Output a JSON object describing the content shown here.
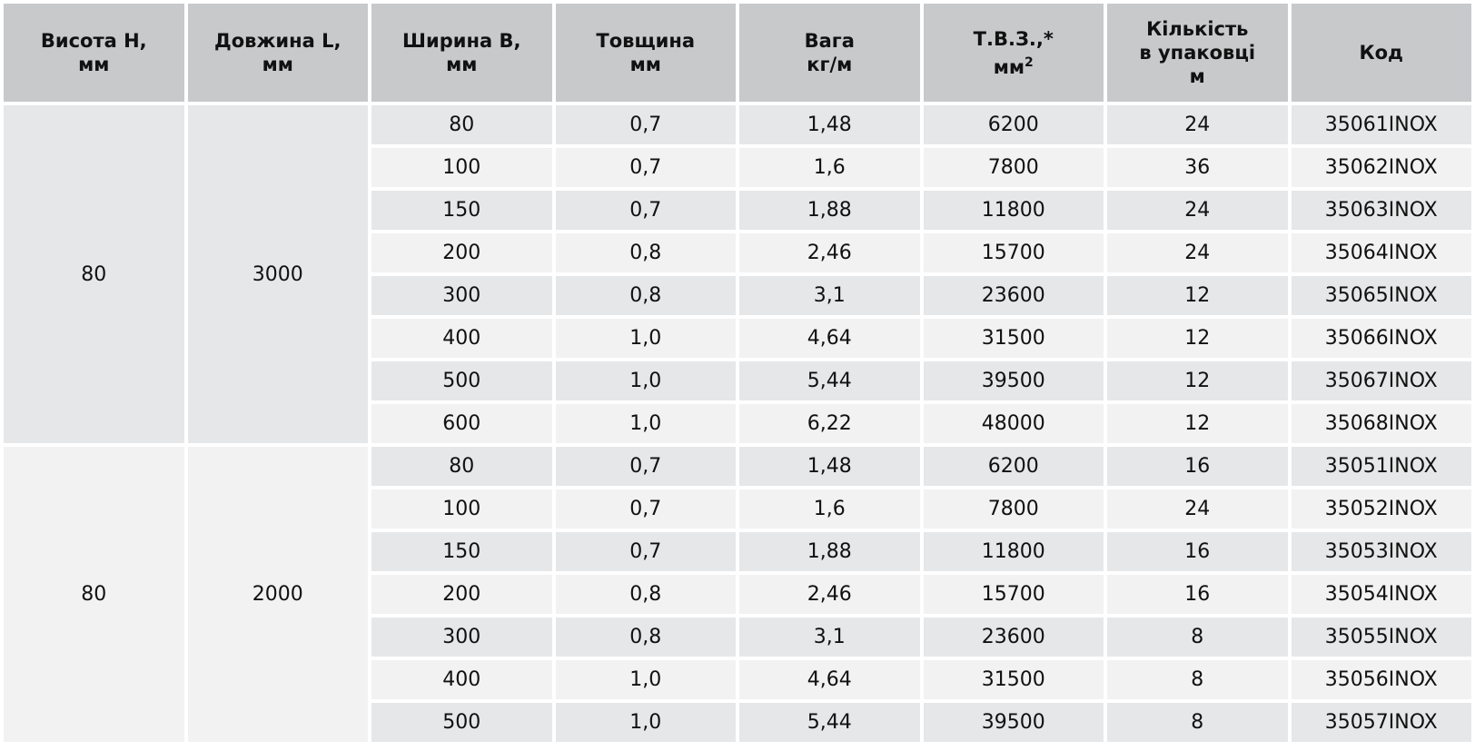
{
  "headers": [
    {
      "line1": "Висота H,",
      "line2": "мм"
    },
    {
      "line1": "Довжина L,",
      "line2": "мм"
    },
    {
      "line1": "Ширина B,",
      "line2": "мм"
    },
    {
      "line1": "Товщина",
      "line2": "мм"
    },
    {
      "line1": "Вага",
      "line2": "кг/м"
    },
    {
      "line1": "Т.В.З.,*",
      "line2": "мм",
      "sup": "2"
    },
    {
      "line1": "Кількість",
      "line2": "в упаковці",
      "line3": "м"
    },
    {
      "line1": "Код"
    }
  ],
  "groups": [
    {
      "height": "80",
      "length": "3000",
      "rows": [
        [
          "80",
          "0,7",
          "1,48",
          "6200",
          "24",
          "35061INOX"
        ],
        [
          "100",
          "0,7",
          "1,6",
          "7800",
          "36",
          "35062INOX"
        ],
        [
          "150",
          "0,7",
          "1,88",
          "11800",
          "24",
          "35063INOX"
        ],
        [
          "200",
          "0,8",
          "2,46",
          "15700",
          "24",
          "35064INOX"
        ],
        [
          "300",
          "0,8",
          "3,1",
          "23600",
          "12",
          "35065INOX"
        ],
        [
          "400",
          "1,0",
          "4,64",
          "31500",
          "12",
          "35066INOX"
        ],
        [
          "500",
          "1,0",
          "5,44",
          "39500",
          "12",
          "35067INOX"
        ],
        [
          "600",
          "1,0",
          "6,22",
          "48000",
          "12",
          "35068INOX"
        ]
      ]
    },
    {
      "height": "80",
      "length": "2000",
      "rows": [
        [
          "80",
          "0,7",
          "1,48",
          "6200",
          "16",
          "35051INOX"
        ],
        [
          "100",
          "0,7",
          "1,6",
          "7800",
          "24",
          "35052INOX"
        ],
        [
          "150",
          "0,7",
          "1,88",
          "11800",
          "16",
          "35053INOX"
        ],
        [
          "200",
          "0,8",
          "2,46",
          "15700",
          "16",
          "35054INOX"
        ],
        [
          "300",
          "0,8",
          "3,1",
          "23600",
          "8",
          "35055INOX"
        ],
        [
          "400",
          "1,0",
          "4,64",
          "31500",
          "8",
          "35056INOX"
        ],
        [
          "500",
          "1,0",
          "5,44",
          "39500",
          "8",
          "35057INOX"
        ]
      ]
    }
  ],
  "colors": {
    "header_bg": "#c8c9cb",
    "row_dark": "#e6e7e8",
    "row_light": "#f2f2f2"
  }
}
